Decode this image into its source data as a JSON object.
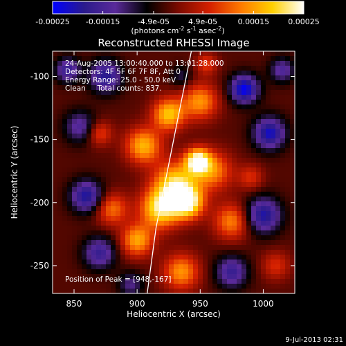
{
  "chart_data": {
    "type": "heatmap",
    "title": "Reconstructed RHESSI Image",
    "xlabel": "Heliocentric X (arcsec)",
    "ylabel": "Heliocentric Y (arcsec)",
    "xlim": [
      833,
      1025
    ],
    "ylim": [
      -272,
      -80
    ],
    "x_ticks": [
      850,
      900,
      950,
      1000
    ],
    "y_ticks": [
      -100,
      -150,
      -200,
      -250
    ],
    "colorbar": {
      "range": [
        -0.00025,
        0.00025
      ],
      "tick_labels": [
        "-0.00025",
        "-0.00015",
        "-4.9e-05",
        "4.9e-05",
        "0.00015",
        "0.00025"
      ],
      "unit_text": "(photons cm",
      "unit_sup1": "-2",
      "unit_mid": " s",
      "unit_sup2": "-1",
      "unit_mid2": " asec",
      "unit_sup3": "-2",
      "unit_end": ")",
      "colormap": [
        "#0000ff",
        "#2a1a8c",
        "#5a2a9a",
        "#000000",
        "#7a0a00",
        "#d42000",
        "#ff7a00",
        "#ffd000",
        "#ffffff"
      ]
    },
    "annotations": {
      "line1": "24-Aug-2005 13:00:40.000 to 13:01:28.000",
      "line2": "Detectors: 4F 5F 6F 7F 8F, Att 0",
      "line3": "Energy Range: 25.0 - 50.0 keV",
      "line4": "Clean     Total counts: 837.",
      "peak": "Position of Peak = [948,-167]"
    },
    "peak_position": [
      948,
      -167
    ],
    "limb_curve": [
      [
        943,
        -80
      ],
      [
        935,
        -120
      ],
      [
        925,
        -170
      ],
      [
        915,
        -220
      ],
      [
        908,
        -272
      ]
    ],
    "field_components": [
      {
        "x": 948,
        "y": -167,
        "amp": 1.0,
        "sigma": 7
      },
      {
        "x": 930,
        "y": -185,
        "amp": 0.85,
        "sigma": 12
      },
      {
        "x": 918,
        "y": -205,
        "amp": 0.9,
        "sigma": 11
      },
      {
        "x": 940,
        "y": -200,
        "amp": 1.0,
        "sigma": 9
      },
      {
        "x": 905,
        "y": -155,
        "amp": 0.75,
        "sigma": 10
      },
      {
        "x": 925,
        "y": -130,
        "amp": 0.8,
        "sigma": 9
      },
      {
        "x": 950,
        "y": -120,
        "amp": 0.65,
        "sigma": 10
      },
      {
        "x": 960,
        "y": -175,
        "amp": 0.6,
        "sigma": 11
      },
      {
        "x": 975,
        "y": -215,
        "amp": 0.6,
        "sigma": 10
      },
      {
        "x": 900,
        "y": -230,
        "amp": 0.7,
        "sigma": 9
      },
      {
        "x": 935,
        "y": -255,
        "amp": 0.65,
        "sigma": 10
      },
      {
        "x": 880,
        "y": -205,
        "amp": 0.55,
        "sigma": 9
      },
      {
        "x": 870,
        "y": -145,
        "amp": 0.45,
        "sigma": 7
      },
      {
        "x": 955,
        "y": -90,
        "amp": 0.4,
        "sigma": 6
      },
      {
        "x": 990,
        "y": -180,
        "amp": 0.35,
        "sigma": 7
      },
      {
        "x": 1010,
        "y": -250,
        "amp": 0.35,
        "sigma": 8
      },
      {
        "x": 875,
        "y": -100,
        "amp": -0.7,
        "sigma": 9
      },
      {
        "x": 855,
        "y": -140,
        "amp": -0.5,
        "sigma": 9
      },
      {
        "x": 985,
        "y": -110,
        "amp": -0.9,
        "sigma": 8
      },
      {
        "x": 1005,
        "y": -145,
        "amp": -0.8,
        "sigma": 9
      },
      {
        "x": 1000,
        "y": -210,
        "amp": -0.75,
        "sigma": 10
      },
      {
        "x": 860,
        "y": -195,
        "amp": -0.75,
        "sigma": 9
      },
      {
        "x": 870,
        "y": -240,
        "amp": -0.6,
        "sigma": 9
      },
      {
        "x": 975,
        "y": -255,
        "amp": -0.6,
        "sigma": 9
      },
      {
        "x": 845,
        "y": -95,
        "amp": -0.6,
        "sigma": 7
      },
      {
        "x": 1015,
        "y": -95,
        "amp": -0.5,
        "sigma": 7
      },
      {
        "x": 935,
        "y": -100,
        "amp": -0.3,
        "sigma": 6
      },
      {
        "x": 895,
        "y": -265,
        "amp": -0.4,
        "sigma": 7
      }
    ]
  },
  "footer": {
    "date": "9-Jul-2013 02:31"
  }
}
